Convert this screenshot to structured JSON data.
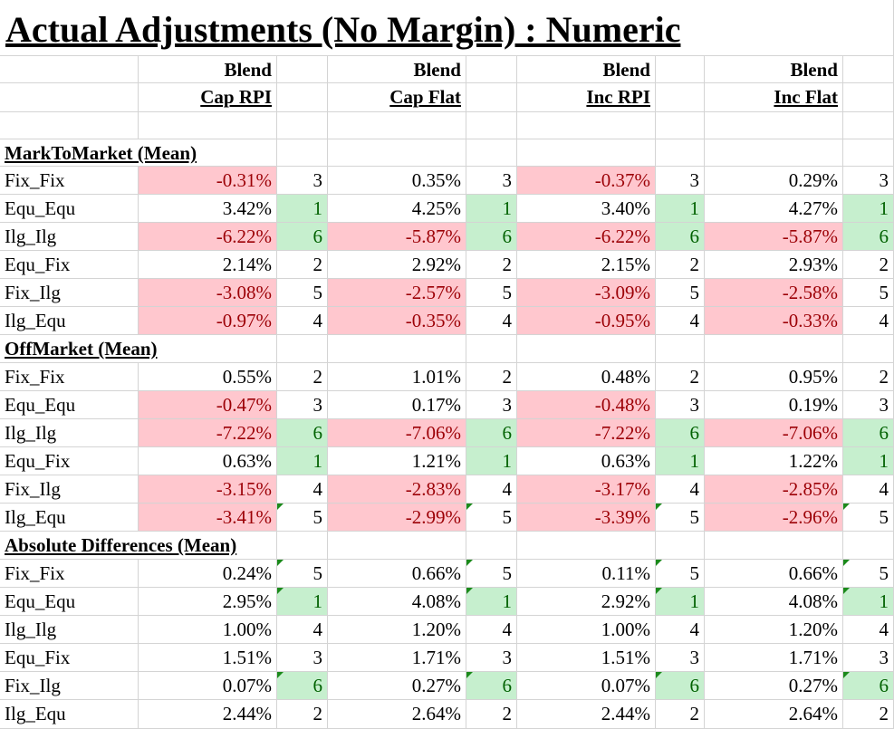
{
  "title": "Actual Adjustments (No Margin) : Numeric",
  "columns": [
    {
      "line1": "Blend",
      "line2": "Cap RPI"
    },
    {
      "line1": "Blend",
      "line2": "Cap Flat"
    },
    {
      "line1": "Blend",
      "line2": "Inc RPI"
    },
    {
      "line1": "Blend",
      "line2": "Inc Flat"
    }
  ],
  "colors": {
    "negative_fill": "#ffc7ce",
    "negative_text": "#9c0006",
    "rank_fill": "#c6efce",
    "rank_text": "#006100"
  },
  "sections": [
    {
      "name": "MarkToMarket (Mean)",
      "rows": [
        {
          "label": "Fix_Fix",
          "cells": [
            [
              "-0.31%",
              "3"
            ],
            [
              "0.35%",
              "3"
            ],
            [
              "-0.37%",
              "3"
            ],
            [
              "0.29%",
              "3"
            ]
          ]
        },
        {
          "label": "Equ_Equ",
          "cells": [
            [
              "3.42%",
              "1"
            ],
            [
              "4.25%",
              "1"
            ],
            [
              "3.40%",
              "1"
            ],
            [
              "4.27%",
              "1"
            ]
          ]
        },
        {
          "label": "Ilg_Ilg",
          "cells": [
            [
              "-6.22%",
              "6"
            ],
            [
              "-5.87%",
              "6"
            ],
            [
              "-6.22%",
              "6"
            ],
            [
              "-5.87%",
              "6"
            ]
          ]
        },
        {
          "label": "Equ_Fix",
          "cells": [
            [
              "2.14%",
              "2"
            ],
            [
              "2.92%",
              "2"
            ],
            [
              "2.15%",
              "2"
            ],
            [
              "2.93%",
              "2"
            ]
          ]
        },
        {
          "label": "Fix_Ilg",
          "cells": [
            [
              "-3.08%",
              "5"
            ],
            [
              "-2.57%",
              "5"
            ],
            [
              "-3.09%",
              "5"
            ],
            [
              "-2.58%",
              "5"
            ]
          ]
        },
        {
          "label": "Ilg_Equ",
          "cells": [
            [
              "-0.97%",
              "4"
            ],
            [
              "-0.35%",
              "4"
            ],
            [
              "-0.95%",
              "4"
            ],
            [
              "-0.33%",
              "4"
            ]
          ]
        }
      ]
    },
    {
      "name": "OffMarket (Mean)",
      "rows": [
        {
          "label": "Fix_Fix",
          "cells": [
            [
              "0.55%",
              "2"
            ],
            [
              "1.01%",
              "2"
            ],
            [
              "0.48%",
              "2"
            ],
            [
              "0.95%",
              "2"
            ]
          ]
        },
        {
          "label": "Equ_Equ",
          "cells": [
            [
              "-0.47%",
              "3"
            ],
            [
              "0.17%",
              "3"
            ],
            [
              "-0.48%",
              "3"
            ],
            [
              "0.19%",
              "3"
            ]
          ]
        },
        {
          "label": "Ilg_Ilg",
          "cells": [
            [
              "-7.22%",
              "6"
            ],
            [
              "-7.06%",
              "6"
            ],
            [
              "-7.22%",
              "6"
            ],
            [
              "-7.06%",
              "6"
            ]
          ]
        },
        {
          "label": "Equ_Fix",
          "cells": [
            [
              "0.63%",
              "1"
            ],
            [
              "1.21%",
              "1"
            ],
            [
              "0.63%",
              "1"
            ],
            [
              "1.22%",
              "1"
            ]
          ]
        },
        {
          "label": "Fix_Ilg",
          "cells": [
            [
              "-3.15%",
              "4"
            ],
            [
              "-2.83%",
              "4"
            ],
            [
              "-3.17%",
              "4"
            ],
            [
              "-2.85%",
              "4"
            ]
          ]
        },
        {
          "label": "Ilg_Equ",
          "cells": [
            [
              "-3.41%",
              "5"
            ],
            [
              "-2.99%",
              "5"
            ],
            [
              "-3.39%",
              "5"
            ],
            [
              "-2.96%",
              "5"
            ]
          ]
        }
      ]
    },
    {
      "name": "Absolute Differences (Mean)",
      "rows": [
        {
          "label": "Fix_Fix",
          "cells": [
            [
              "0.24%",
              "5"
            ],
            [
              "0.66%",
              "5"
            ],
            [
              "0.11%",
              "5"
            ],
            [
              "0.66%",
              "5"
            ]
          ]
        },
        {
          "label": "Equ_Equ",
          "cells": [
            [
              "2.95%",
              "1"
            ],
            [
              "4.08%",
              "1"
            ],
            [
              "2.92%",
              "1"
            ],
            [
              "4.08%",
              "1"
            ]
          ]
        },
        {
          "label": "Ilg_Ilg",
          "cells": [
            [
              "1.00%",
              "4"
            ],
            [
              "1.20%",
              "4"
            ],
            [
              "1.00%",
              "4"
            ],
            [
              "1.20%",
              "4"
            ]
          ]
        },
        {
          "label": "Equ_Fix",
          "cells": [
            [
              "1.51%",
              "3"
            ],
            [
              "1.71%",
              "3"
            ],
            [
              "1.51%",
              "3"
            ],
            [
              "1.71%",
              "3"
            ]
          ]
        },
        {
          "label": "Fix_Ilg",
          "cells": [
            [
              "0.07%",
              "6"
            ],
            [
              "0.27%",
              "6"
            ],
            [
              "0.07%",
              "6"
            ],
            [
              "0.27%",
              "6"
            ]
          ]
        },
        {
          "label": "Ilg_Equ",
          "cells": [
            [
              "2.44%",
              "2"
            ],
            [
              "2.64%",
              "2"
            ],
            [
              "2.44%",
              "2"
            ],
            [
              "2.64%",
              "2"
            ]
          ]
        }
      ]
    }
  ]
}
